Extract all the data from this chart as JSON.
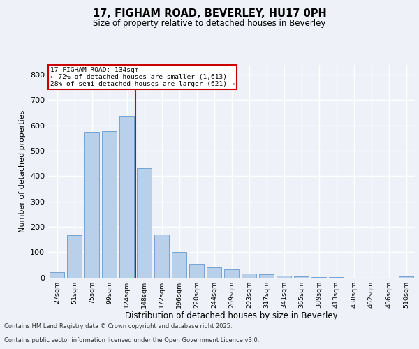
{
  "title1": "17, FIGHAM ROAD, BEVERLEY, HU17 0PH",
  "title2": "Size of property relative to detached houses in Beverley",
  "xlabel": "Distribution of detached houses by size in Beverley",
  "ylabel": "Number of detached properties",
  "categories": [
    "27sqm",
    "51sqm",
    "75sqm",
    "99sqm",
    "124sqm",
    "148sqm",
    "172sqm",
    "196sqm",
    "220sqm",
    "244sqm",
    "269sqm",
    "293sqm",
    "317sqm",
    "341sqm",
    "365sqm",
    "389sqm",
    "413sqm",
    "438sqm",
    "462sqm",
    "486sqm",
    "510sqm"
  ],
  "values": [
    20,
    168,
    575,
    577,
    638,
    430,
    170,
    100,
    53,
    40,
    32,
    15,
    13,
    8,
    3,
    2,
    1,
    0,
    0,
    0,
    5
  ],
  "bar_color": "#b8d0ea",
  "bar_edge_color": "#6699cc",
  "vline_x": 4.5,
  "vline_color": "#cc0000",
  "annotation_title": "17 FIGHAM ROAD: 134sqm",
  "annotation_line1": "← 72% of detached houses are smaller (1,613)",
  "annotation_line2": "28% of semi-detached houses are larger (621) →",
  "annotation_box_color": "#ffffff",
  "annotation_box_edge": "#cc0000",
  "ylim": [
    0,
    840
  ],
  "yticks": [
    0,
    100,
    200,
    300,
    400,
    500,
    600,
    700,
    800
  ],
  "footer1": "Contains HM Land Registry data © Crown copyright and database right 2025.",
  "footer2": "Contains public sector information licensed under the Open Government Licence v3.0.",
  "bg_color": "#eef2f8",
  "grid_color": "#ffffff"
}
